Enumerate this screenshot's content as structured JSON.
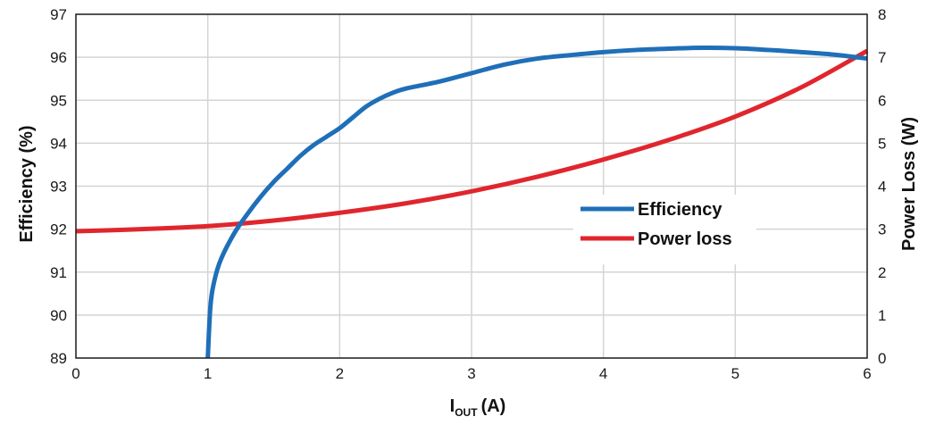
{
  "chart_data": {
    "type": "line",
    "xlabel": {
      "main": "I",
      "sub": "OUT",
      "unit": "(A)"
    },
    "ylabel_left": "Efficiency (%)",
    "ylabel_right": "Power Loss (W)",
    "xlim": [
      0,
      6
    ],
    "ylim_left": [
      89,
      97
    ],
    "ylim_right": [
      0,
      8
    ],
    "x_ticks": [
      "0",
      "1",
      "2",
      "3",
      "4",
      "5",
      "6"
    ],
    "y_left_ticks": [
      "89",
      "90",
      "91",
      "92",
      "93",
      "94",
      "95",
      "96",
      "97"
    ],
    "y_right_ticks": [
      "0",
      "1",
      "2",
      "3",
      "4",
      "5",
      "6",
      "7",
      "8"
    ],
    "grid": true,
    "legend_position": "right-center",
    "series": [
      {
        "name": "Efficiency",
        "axis": "left",
        "color": "#1f6fb8",
        "x": [
          1.0,
          1.02,
          1.05,
          1.1,
          1.2,
          1.3,
          1.4,
          1.5,
          1.6,
          1.7,
          1.8,
          1.9,
          2.0,
          2.1,
          2.2,
          2.3,
          2.4,
          2.5,
          2.75,
          3.0,
          3.25,
          3.5,
          3.75,
          4.0,
          4.25,
          4.5,
          4.75,
          5.0,
          5.25,
          5.5,
          5.75,
          6.0
        ],
        "y": [
          89.0,
          90.2,
          90.8,
          91.3,
          91.9,
          92.35,
          92.75,
          93.1,
          93.4,
          93.7,
          93.95,
          94.15,
          94.35,
          94.6,
          94.85,
          95.03,
          95.17,
          95.27,
          95.43,
          95.63,
          95.83,
          95.97,
          96.05,
          96.12,
          96.17,
          96.2,
          96.22,
          96.21,
          96.17,
          96.12,
          96.06,
          95.97
        ]
      },
      {
        "name": "Power loss",
        "axis": "right",
        "color": "#e0262d",
        "x": [
          0.0,
          0.5,
          1.0,
          1.5,
          2.0,
          2.5,
          3.0,
          3.5,
          4.0,
          4.5,
          5.0,
          5.5,
          6.0
        ],
        "y": [
          2.95,
          3.0,
          3.07,
          3.2,
          3.38,
          3.6,
          3.88,
          4.22,
          4.62,
          5.08,
          5.62,
          6.3,
          7.15
        ]
      }
    ]
  }
}
